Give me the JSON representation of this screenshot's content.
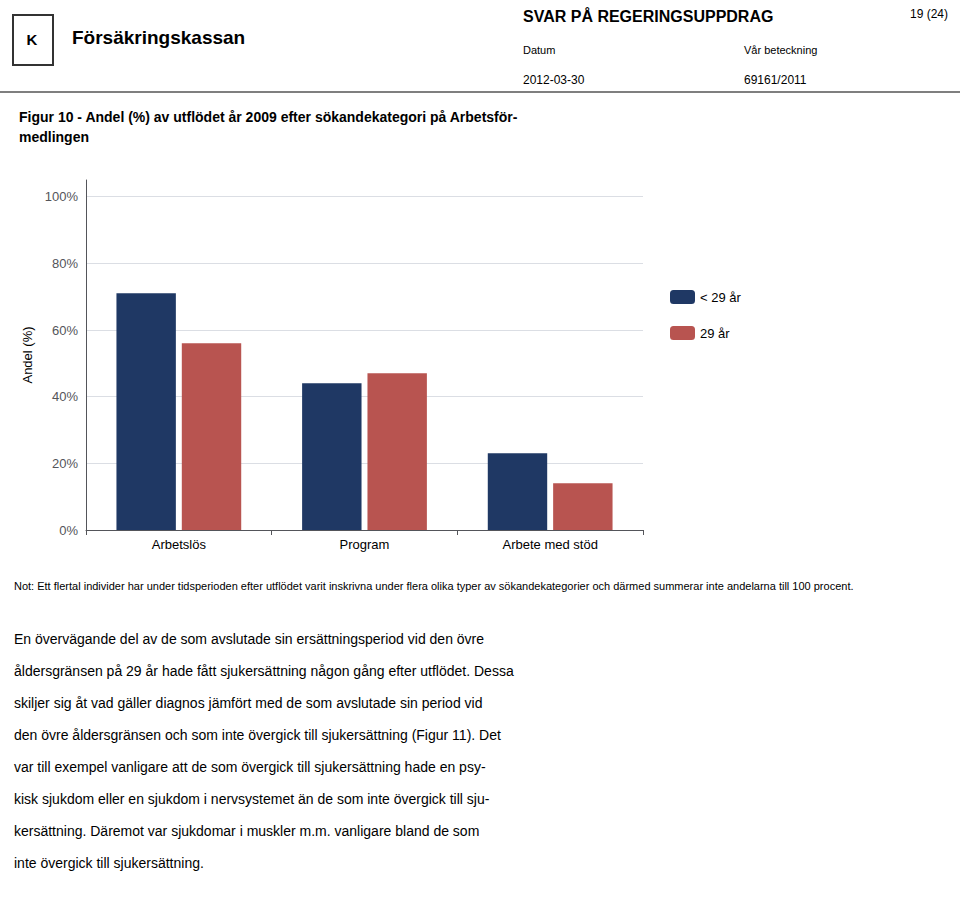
{
  "chart_data": {
    "type": "bar",
    "title": "Figur 10 - Andel (%) av utflödet år 2009 efter sökandekategori på Arbetsför-\nmedlingen",
    "ylabel": "Andel (%)",
    "categories": [
      "Arbetslös",
      "Program",
      "Arbete med stöd"
    ],
    "series": [
      {
        "name": "< 29 år",
        "color": "#1F3864",
        "values": [
          71,
          44,
          23
        ]
      },
      {
        "name": "29 år",
        "color": "#B85450",
        "values": [
          56,
          47,
          14
        ]
      }
    ],
    "ylim": [
      0,
      105
    ],
    "yticks": [
      {
        "value": 0,
        "label": "0%"
      },
      {
        "value": 20,
        "label": "20%"
      },
      {
        "value": 40,
        "label": "40%"
      },
      {
        "value": 60,
        "label": "60%"
      },
      {
        "value": 80,
        "label": "80%"
      },
      {
        "value": 100,
        "label": "100%"
      }
    ],
    "grid": true,
    "legend": "right",
    "annotations": [
      "K",
      "Försäkringskassan",
      "SVAR PÅ REGERINGSUPPDRAG",
      "Datum",
      "Vår beteckning",
      "2012-03-30",
      "69161/2011",
      "19 (24)",
      "Not: Ett flertal individer har under tidsperioden efter utflödet varit inskrivna under flera olika typer av sökandekategorier och därmed summerar inte andelarna till 100 procent.",
      "En övervägande del av de som avslutade sin ersättningsperiod vid den övre",
      "åldersgränsen på 29 år hade fått sjukersättning någon gång efter utflödet. Dessa",
      "skiljer sig åt vad gäller diagnos jämfört med de som avslutade sin period vid",
      "den övre åldersgränsen och som inte övergick till sjukersättning (Figur 11). Det",
      "var till exempel vanligare att de som övergick till sjukersättning hade en psy-",
      "kisk sjukdom eller en sjukdom i nervsystemet än de som inte övergick till sju-",
      "kersättning. Däremot var sjukdomar i muskler m.m. vanligare bland de som",
      "inte övergick till sjukersättning."
    ]
  }
}
